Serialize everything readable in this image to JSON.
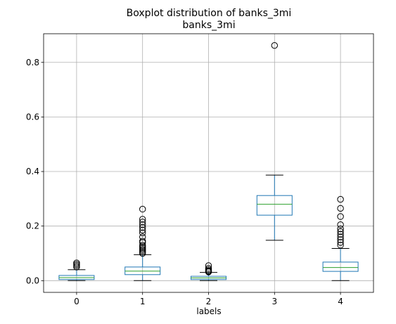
{
  "chart_data": {
    "type": "boxplot",
    "suptitle": "Boxplot distribution of banks_3mi",
    "title": "banks_3mi",
    "xlabel": "labels",
    "ylabel": "",
    "categories": [
      "0",
      "1",
      "2",
      "3",
      "4"
    ],
    "y_ticks": [
      0.0,
      0.2,
      0.4,
      0.6,
      0.8
    ],
    "y_tick_labels": [
      "0.0",
      "0.2",
      "0.4",
      "0.6",
      "0.8"
    ],
    "ylim": [
      -0.043,
      0.905
    ],
    "grid": true,
    "box_color": "#1f77b4",
    "median_color": "#2ca02c",
    "boxes": [
      {
        "category": "0",
        "whisker_low": 0.0,
        "q1": 0.004,
        "median": 0.011,
        "q3": 0.019,
        "whisker_high": 0.04,
        "outliers": [
          0.05,
          0.055,
          0.06,
          0.065
        ]
      },
      {
        "category": "1",
        "whisker_low": 0.0,
        "q1": 0.022,
        "median": 0.035,
        "q3": 0.05,
        "whisker_high": 0.095,
        "outliers": [
          0.1,
          0.105,
          0.11,
          0.115,
          0.12,
          0.125,
          0.13,
          0.14,
          0.145,
          0.16,
          0.175,
          0.185,
          0.195,
          0.205,
          0.215,
          0.225,
          0.262
        ]
      },
      {
        "category": "2",
        "whisker_low": 0.0,
        "q1": 0.004,
        "median": 0.01,
        "q3": 0.016,
        "whisker_high": 0.03,
        "outliers": [
          0.032,
          0.034,
          0.036,
          0.04,
          0.045,
          0.055
        ]
      },
      {
        "category": "3",
        "whisker_low": 0.148,
        "q1": 0.24,
        "median": 0.28,
        "q3": 0.312,
        "whisker_high": 0.387,
        "outliers": [
          0.862
        ]
      },
      {
        "category": "4",
        "whisker_low": 0.0,
        "q1": 0.034,
        "median": 0.048,
        "q3": 0.068,
        "whisker_high": 0.118,
        "outliers": [
          0.13,
          0.14,
          0.15,
          0.16,
          0.17,
          0.18,
          0.19,
          0.205,
          0.235,
          0.265,
          0.298
        ]
      }
    ]
  }
}
